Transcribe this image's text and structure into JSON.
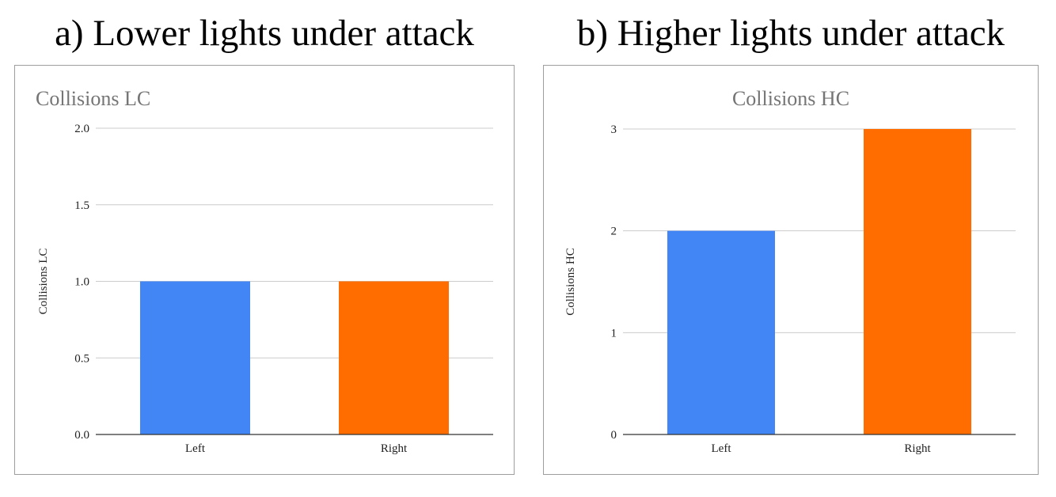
{
  "headings": {
    "a": "a) Lower lights under attack",
    "b": "b) Higher lights under attack"
  },
  "chart_data": [
    {
      "type": "bar",
      "title": "Collisions LC",
      "title_align": "left",
      "ylabel": "Collisions LC",
      "xlabel": "",
      "categories": [
        "Left",
        "Right"
      ],
      "values": [
        1,
        1
      ],
      "colors": [
        "#4285F4",
        "#FF6D01"
      ],
      "ylim": [
        0,
        2
      ],
      "yticks": [
        "0.0",
        "0.5",
        "1.0",
        "1.5",
        "2.0"
      ],
      "grid": true,
      "legend": "none"
    },
    {
      "type": "bar",
      "title": "Collisions HC",
      "title_align": "center",
      "ylabel": "Collisions HC",
      "xlabel": "",
      "categories": [
        "Left",
        "Right"
      ],
      "values": [
        2,
        3
      ],
      "colors": [
        "#4285F4",
        "#FF6D01"
      ],
      "ylim": [
        0,
        3
      ],
      "yticks": [
        "0",
        "1",
        "2",
        "3"
      ],
      "grid": true,
      "legend": "none"
    }
  ]
}
